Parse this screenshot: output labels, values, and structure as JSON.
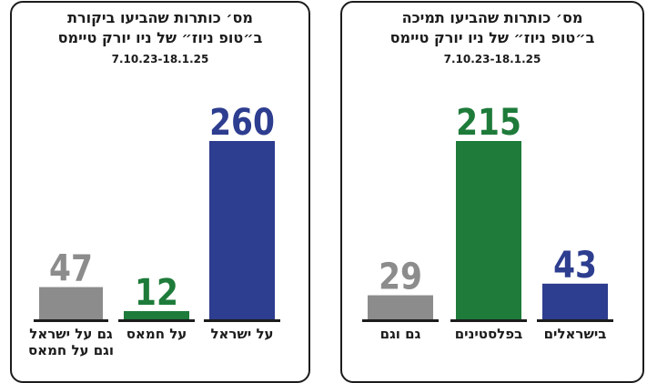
{
  "chart_data": [
    {
      "type": "bar",
      "title": [
        "מס׳ כותרות שהביעו ביקורת",
        "ב״טופ ניוז״ של ניו יורק טיימס"
      ],
      "date_range": "7.10.23-18.1.25",
      "categories": [
        [
          "על ישראל"
        ],
        [
          "על חמאס"
        ],
        [
          "גם על ישראל",
          "וגם על חמאס"
        ]
      ],
      "values": [
        260,
        12,
        47
      ],
      "colors": [
        "#2d3d8f",
        "#1e7b3a",
        "#8c8c8c"
      ],
      "ylim": [
        0,
        260
      ]
    },
    {
      "type": "bar",
      "title": [
        "מס׳ כותרות שהביעו תמיכה",
        "ב״טופ ניוז״ של ניו יורק טיימס"
      ],
      "date_range": "7.10.23-18.1.25",
      "categories": [
        [
          "בישראלים"
        ],
        [
          "בפלסטינים"
        ],
        [
          "גם וגם"
        ]
      ],
      "values": [
        43,
        215,
        29
      ],
      "colors": [
        "#2d3d8f",
        "#1e7b3a",
        "#8c8c8c"
      ],
      "ylim": [
        0,
        215
      ]
    }
  ]
}
